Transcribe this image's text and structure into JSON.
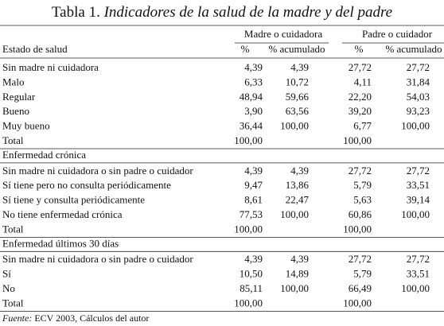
{
  "title": {
    "label": "Tabla 1.",
    "text": "Indicadores de la salud de la madre y del padre"
  },
  "header": {
    "groups": [
      "Madre o cuidadora",
      "Padre o cuidador"
    ],
    "columns": [
      "Estado de salud",
      "%",
      "% acumulado",
      "%",
      "% acumulado"
    ]
  },
  "sections": [
    {
      "rows": [
        [
          "Sin madre ni cuidadora",
          "4,39",
          "4,39",
          "27,72",
          "27,72"
        ],
        [
          "Malo",
          "6,33",
          "10,72",
          "4,11",
          "31,84"
        ],
        [
          "Regular",
          "48,94",
          "59,66",
          "22,20",
          "54,03"
        ],
        [
          "Bueno",
          "3,90",
          "63,56",
          "39,20",
          "93,23"
        ],
        [
          "Muy bueno",
          "36,44",
          "100,00",
          "6,77",
          "100,00"
        ]
      ],
      "total": [
        "Total",
        "100,00",
        "100,00"
      ]
    },
    {
      "title": "Enfermedad crónica",
      "rows": [
        [
          "Sin madre ni cuidadora o sin padre o cuidador",
          "4,39",
          "4,39",
          "27,72",
          "27,72"
        ],
        [
          "Sí tiene pero no consulta periódicamente",
          "9,47",
          "13,86",
          "5,79",
          "33,51"
        ],
        [
          "Sí tiene y consulta periódicamente",
          "8,61",
          "22,47",
          "5,63",
          "39,14"
        ],
        [
          "No tiene enfermedad crónica",
          "77,53",
          "100,00",
          "60,86",
          "100,00"
        ]
      ],
      "total": [
        "Total",
        "100,00",
        "100,00"
      ]
    },
    {
      "title": "Enfermedad últimos 30 días",
      "rows": [
        [
          "Sin madre ni cuidadora o sin padre o cuidador",
          "4,39",
          "4,39",
          "27,72",
          "27,72"
        ],
        [
          "Sí",
          "10,50",
          "14,89",
          "5,79",
          "33,51"
        ],
        [
          "No",
          "85,11",
          "100,00",
          "66,49",
          "100,00"
        ]
      ],
      "total": [
        "Total",
        "100,00",
        "100,00"
      ]
    }
  ],
  "source": {
    "label": "Fuente:",
    "text": "ECV 2003, Cálculos del autor"
  }
}
